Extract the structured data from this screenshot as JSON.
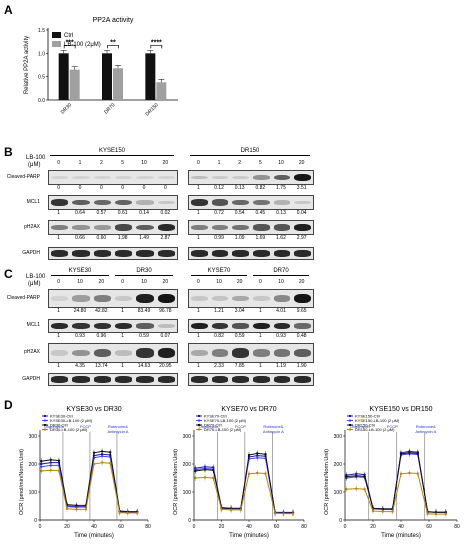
{
  "panels": {
    "A": "A",
    "B": "B",
    "C": "C",
    "D": "D"
  },
  "panelA": {
    "chart_data": {
      "type": "bar",
      "title": "PP2A activity",
      "ylabel": "Relative PP2A activity",
      "categories": [
        "DR30",
        "DR70",
        "DR150"
      ],
      "series": [
        {
          "name": "Ctrl",
          "values": [
            1.0,
            1.0,
            1.0
          ],
          "color": "#111111"
        },
        {
          "name": "LB-100 (2μM)",
          "values": [
            0.65,
            0.68,
            0.38
          ],
          "color": "#a0a0a0"
        }
      ],
      "ylim": [
        0,
        1.5
      ],
      "yticks": [
        "0.0",
        "0.5",
        "1.0",
        "1.5"
      ],
      "significance": [
        "***",
        "**",
        "****"
      ],
      "legend": "top-left"
    }
  },
  "panelB": {
    "lb100_label": "LB-100",
    "lb100_unit": "(μM)",
    "left": {
      "title": "KYSE150",
      "doses": [
        "0",
        "1",
        "2",
        "5",
        "10",
        "20"
      ],
      "rows": [
        {
          "name": "Cleaved-PARP",
          "quant": [
            "0",
            "0",
            "0",
            "0",
            "0",
            "0"
          ],
          "bands": [
            0.05,
            0.05,
            0.05,
            0.05,
            0.05,
            0.05
          ]
        },
        {
          "name": "MCL1",
          "quant": [
            "1",
            "0.64",
            "0.57",
            "0.61",
            "0.14",
            "0.02"
          ],
          "bands": [
            0.8,
            0.6,
            0.55,
            0.58,
            0.2,
            0.1
          ]
        },
        {
          "name": "pH2AX",
          "quant": [
            "1",
            "0.66",
            "0.60",
            "1.98",
            "1.49",
            "2.87"
          ],
          "bands": [
            0.45,
            0.35,
            0.32,
            0.7,
            0.6,
            0.85
          ]
        },
        {
          "name": "GAPDH",
          "quant": [],
          "bands": [
            0.85,
            0.85,
            0.85,
            0.85,
            0.85,
            0.85
          ]
        }
      ]
    },
    "right": {
      "title": "DR150",
      "doses": [
        "0",
        "1",
        "2",
        "5",
        "10",
        "20"
      ],
      "rows": [
        {
          "name": "Cleaved-PARP",
          "quant": [
            "1",
            "0.12",
            "0.13",
            "0.82",
            "1.75",
            "3.51"
          ],
          "bands": [
            0.15,
            0.08,
            0.08,
            0.35,
            0.6,
            0.95
          ]
        },
        {
          "name": "MCL1",
          "quant": [
            "1",
            "0.72",
            "0.54",
            "0.45",
            "0.13",
            "0.04"
          ],
          "bands": [
            0.8,
            0.65,
            0.55,
            0.5,
            0.2,
            0.1
          ]
        },
        {
          "name": "pH2AX",
          "quant": [
            "1",
            "0.99",
            "1.09",
            "1.69",
            "1.62",
            "2.97"
          ],
          "bands": [
            0.45,
            0.45,
            0.5,
            0.65,
            0.65,
            0.9
          ]
        },
        {
          "name": "GAPDH",
          "quant": [],
          "bands": [
            0.85,
            0.85,
            0.85,
            0.85,
            0.85,
            0.85
          ]
        }
      ]
    }
  },
  "panelC": {
    "lb100_label": "LB-100",
    "lb100_unit": "(μM)",
    "left": {
      "groups": [
        "KYSE30",
        "DR30"
      ],
      "doses": [
        "0",
        "10",
        "20",
        "0",
        "10",
        "20"
      ],
      "rows": [
        {
          "name": "Cleaved-PARP",
          "quant": [
            "1",
            "24.80",
            "42.82",
            "1",
            "83.49",
            "96.78"
          ],
          "bands": [
            0.05,
            0.3,
            0.45,
            0.1,
            0.9,
            0.95
          ]
        },
        {
          "name": "MCL1",
          "quant": [
            "1",
            "0.93",
            "0.96",
            "1",
            "0.59",
            "0.07"
          ],
          "bands": [
            0.85,
            0.8,
            0.82,
            0.85,
            0.6,
            0.15
          ]
        },
        {
          "name": "pH2AX",
          "quant": [
            "1",
            "4.35",
            "13.74",
            "1",
            "14.63",
            "20.95"
          ],
          "bands": [
            0.1,
            0.35,
            0.6,
            0.15,
            0.8,
            0.9
          ]
        },
        {
          "name": "GAPDH",
          "quant": [],
          "bands": [
            0.85,
            0.85,
            0.85,
            0.85,
            0.85,
            0.85
          ]
        }
      ]
    },
    "right": {
      "groups": [
        "KYSE70",
        "DR70"
      ],
      "doses": [
        "0",
        "10",
        "20",
        "0",
        "10",
        "20"
      ],
      "rows": [
        {
          "name": "Cleaved-PARP",
          "quant": [
            "1",
            "1.21",
            "3.04",
            "1",
            "4.01",
            "9.65"
          ],
          "bands": [
            0.1,
            0.12,
            0.25,
            0.1,
            0.4,
            0.95
          ]
        },
        {
          "name": "MCL1",
          "quant": [
            "1",
            "0.82",
            "0.59",
            "1",
            "0.93",
            "0.48"
          ],
          "bands": [
            0.9,
            0.8,
            0.65,
            0.9,
            0.85,
            0.55
          ]
        },
        {
          "name": "pH2AX",
          "quant": [
            "1",
            "2.33",
            "7.85",
            "1",
            "1.19",
            "1.90"
          ],
          "bands": [
            0.25,
            0.45,
            0.8,
            0.45,
            0.5,
            0.6
          ]
        },
        {
          "name": "GAPDH",
          "quant": [],
          "bands": [
            0.85,
            0.85,
            0.85,
            0.85,
            0.85,
            0.85
          ]
        }
      ]
    }
  },
  "panelD": {
    "ylabel": "OCR (pmol/min/Norm.Unit)",
    "xlabel": "Time (minutes)",
    "xticks": [
      "0",
      "20",
      "40",
      "60",
      "80"
    ],
    "yticks": [
      "0",
      "100",
      "200",
      "300"
    ],
    "annotations": [
      "Oligomycin",
      "FCCP",
      "Rotenone&\nAntimycin A"
    ],
    "annotation_color": "#2233cc",
    "charts": [
      {
        "title": "KYSE30 vs DR30",
        "legend": [
          "KYSE30-Ctrl",
          "KYSE30-LB-100 (2 μM)",
          "DR30-Ctrl",
          "DR30-LB-100 (2 μM)"
        ],
        "chart_data": {
          "type": "line",
          "x": [
            1,
            8,
            14,
            20,
            27,
            34,
            40,
            46,
            52,
            59,
            65,
            72
          ],
          "ylim": [
            0,
            300
          ],
          "xlim": [
            0,
            80
          ],
          "series": [
            {
              "name": "KYSE30-Ctrl",
              "color": "#1a1aa0",
              "values": [
                200,
                205,
                205,
                50,
                48,
                48,
                230,
                235,
                232,
                30,
                28,
                28
              ]
            },
            {
              "name": "KYSE30-LB-100 (2 μM)",
              "color": "#4444ff",
              "values": [
                190,
                195,
                195,
                48,
                46,
                46,
                222,
                228,
                225,
                29,
                27,
                27
              ]
            },
            {
              "name": "DR30-Ctrl",
              "color": "#111111",
              "values": [
                210,
                215,
                212,
                55,
                52,
                52,
                240,
                245,
                242,
                32,
                30,
                30
              ]
            },
            {
              "name": "DR30-LB-100 (2 μM)",
              "color": "#b8860b",
              "values": [
                175,
                178,
                176,
                40,
                38,
                38,
                200,
                205,
                203,
                26,
                25,
                25
              ]
            }
          ]
        }
      },
      {
        "title": "KYSE70 vs DR70",
        "legend": [
          "KYSE70-Ctrl",
          "KYSE70-LB-100 (2 μM)",
          "DR70-Ctrl",
          "DR70-LB-100 (2 μM)"
        ],
        "chart_data": {
          "type": "line",
          "x": [
            1,
            8,
            14,
            20,
            27,
            34,
            40,
            46,
            52,
            59,
            65,
            72
          ],
          "ylim": [
            0,
            300
          ],
          "xlim": [
            0,
            80
          ],
          "series": [
            {
              "name": "KYSE70-Ctrl",
              "color": "#1a1aa0",
              "values": [
                185,
                190,
                188,
                45,
                42,
                42,
                225,
                230,
                228,
                28,
                27,
                27
              ]
            },
            {
              "name": "KYSE70-LB-100 (2 μM)",
              "color": "#4444ff",
              "values": [
                180,
                184,
                182,
                44,
                41,
                41,
                218,
                222,
                220,
                27,
                26,
                26
              ]
            },
            {
              "name": "DR70-Ctrl",
              "color": "#111111",
              "values": [
                175,
                180,
                178,
                42,
                40,
                40,
                232,
                238,
                235,
                26,
                25,
                25
              ]
            },
            {
              "name": "DR70-LB-100 (2 μM)",
              "color": "#b8860b",
              "values": [
                150,
                152,
                150,
                38,
                36,
                36,
                165,
                168,
                166,
                24,
                23,
                23
              ]
            }
          ]
        }
      },
      {
        "title": "KYSE150 vs DR150",
        "legend": [
          "KYSE150-Ctrl",
          "KYSE150-LB-100 (2 μM)",
          "DR150-Ctrl",
          "DR150-LB-100 (2 μM)"
        ],
        "chart_data": {
          "type": "line",
          "x": [
            1,
            8,
            14,
            20,
            27,
            34,
            40,
            46,
            52,
            59,
            65,
            72
          ],
          "ylim": [
            0,
            300
          ],
          "xlim": [
            0,
            80
          ],
          "series": [
            {
              "name": "KYSE150-Ctrl",
              "color": "#1a1aa0",
              "values": [
                160,
                165,
                162,
                42,
                40,
                40,
                240,
                245,
                242,
                30,
                28,
                28
              ]
            },
            {
              "name": "KYSE150-LB-100 (2 μM)",
              "color": "#4444ff",
              "values": [
                150,
                154,
                152,
                40,
                38,
                38,
                232,
                236,
                234,
                29,
                27,
                27
              ]
            },
            {
              "name": "DR150-Ctrl",
              "color": "#111111",
              "values": [
                155,
                158,
                156,
                41,
                39,
                39,
                236,
                240,
                238,
                29,
                28,
                28
              ]
            },
            {
              "name": "DR150-LB-100 (2 μM)",
              "color": "#b8860b",
              "values": [
                110,
                112,
                110,
                32,
                30,
                30,
                165,
                168,
                166,
                22,
                21,
                21
              ]
            }
          ]
        }
      }
    ]
  }
}
